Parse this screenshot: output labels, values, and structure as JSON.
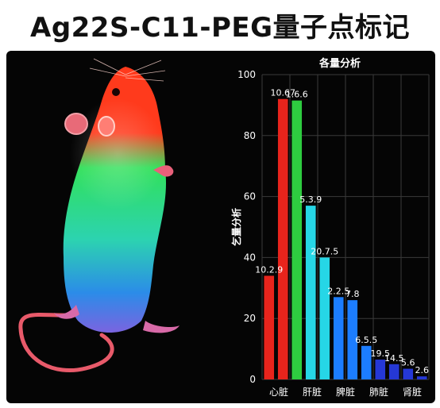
{
  "header": {
    "title": "Ag22S-C11-PEG量子点标记"
  },
  "colors": {
    "background": "#050505",
    "grid": "#3a3a3a",
    "axis_text": "#ffffff",
    "bar_red": "#e8241c",
    "bar_green": "#2ecc40",
    "bar_cyan": "#26d6e6",
    "bar_blue": "#1c7dff",
    "bar_deep_blue": "#2538d6"
  },
  "chart_data": {
    "type": "bar",
    "title": "各量分析",
    "ylabel": "乞量分析",
    "xlabel": "",
    "ylim": [
      0,
      100
    ],
    "yticks": [
      0,
      20,
      40,
      60,
      80,
      100
    ],
    "category_labels": [
      "心脏",
      "肝脏",
      "脾脏",
      "肺脏",
      "肾脏"
    ],
    "grid": true,
    "bars": [
      {
        "label": "10.2.9",
        "value": 34,
        "color": "bar_red"
      },
      {
        "label": "10.67",
        "value": 92,
        "color": "bar_red"
      },
      {
        "label": "1.6.6",
        "value": 91.5,
        "color": "bar_green"
      },
      {
        "label": "5.3.9",
        "value": 57,
        "color": "bar_cyan"
      },
      {
        "label": "20.7.5",
        "value": 40,
        "color": "bar_cyan"
      },
      {
        "label": "2.2.5",
        "value": 27,
        "color": "bar_blue"
      },
      {
        "label": "7.8",
        "value": 26,
        "color": "bar_blue"
      },
      {
        "label": "6.5.5",
        "value": 11,
        "color": "bar_blue"
      },
      {
        "label": "19.5",
        "value": 6.5,
        "color": "bar_deep_blue"
      },
      {
        "label": "14.5",
        "value": 5,
        "color": "bar_deep_blue"
      },
      {
        "label": "5.6",
        "value": 3.5,
        "color": "bar_deep_blue"
      },
      {
        "label": "2.6",
        "value": 1,
        "color": "bar_deep_blue"
      }
    ]
  }
}
